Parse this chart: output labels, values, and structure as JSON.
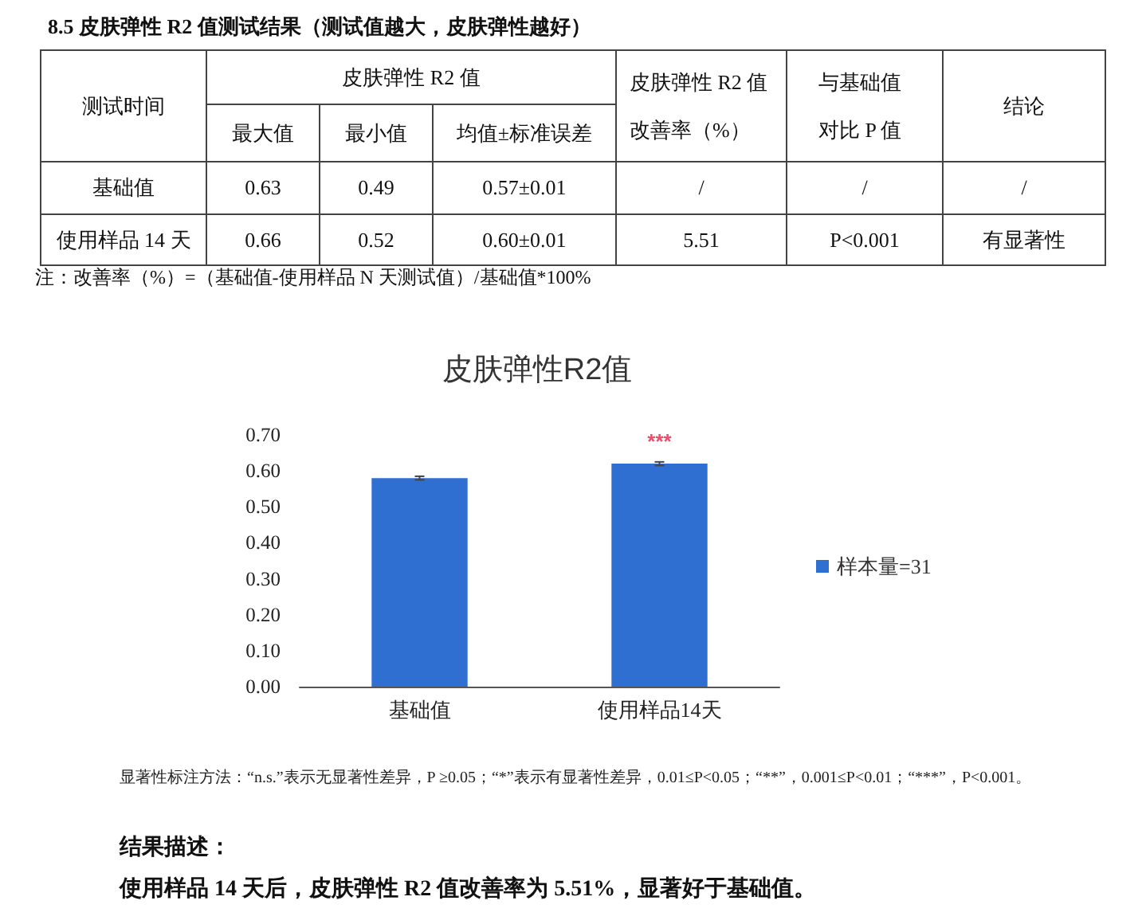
{
  "chart_data": [
    {
      "type": "other",
      "title": "8.5 皮肤弹性 R2 值测试结果（测试值越大，皮肤弹性越好）",
      "annotations": [
        "测试时间",
        "皮肤弹性 R2 值",
        "皮肤弹性 R2 值改善率（%）",
        "与基础值对比 P 值",
        "结论",
        "最大值",
        "最小值",
        "均值±标准误差",
        "基础值",
        "0.63",
        "0.49",
        "0.57±0.01",
        "/",
        "/",
        "/",
        "使用样品 14 天",
        "0.66",
        "0.52",
        "0.60±0.01",
        "5.51",
        "P<0.001",
        "有显著性",
        "注：改善率（%）=（基础值-使用样品 N 天测试值）/基础值*100%"
      ]
    },
    {
      "type": "bar",
      "title": "皮肤弹性R2值",
      "categories": [
        "基础值",
        "使用样品14天"
      ],
      "series": [
        {
          "name": "样本量=31",
          "color": "#2f6fd1",
          "values": [
            0.58,
            0.62
          ],
          "errors": [
            0.005,
            0.005
          ]
        }
      ],
      "ylim": [
        0,
        0.7
      ],
      "yticks": [
        {
          "value": 0,
          "label": "0.00"
        },
        {
          "value": 0.1,
          "label": "0.10"
        },
        {
          "value": 0.2,
          "label": "0.20"
        },
        {
          "value": 0.3,
          "label": "0.30"
        },
        {
          "value": 0.4,
          "label": "0.40"
        },
        {
          "value": 0.5,
          "label": "0.50"
        },
        {
          "value": 0.6,
          "label": "0.60"
        },
        {
          "value": 0.7,
          "label": "0.70"
        }
      ],
      "legend": "right",
      "annotations": [
        "***",
        "显著性标注方法：“n.s.”表示无显著性差异，P ≥0.05；“*”表示有显著性差异，0.01≤P<0.05；“**”，0.001≤P<0.01；“***”，P<0.001。",
        "结果描述：",
        "使用样品 14 天后，皮肤弹性 R2 值改善率为 5.51%，显著好于基础值。"
      ]
    }
  ]
}
